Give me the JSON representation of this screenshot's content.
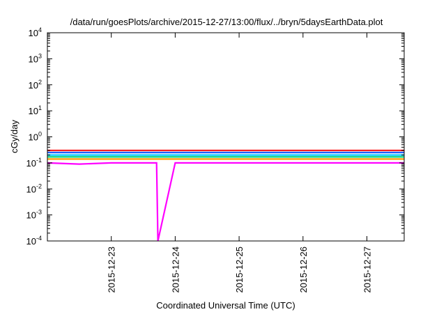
{
  "chart_data": {
    "type": "line",
    "title": "/data/run/goesPlots/archive/2015-12-27/13:00/flux/../bryn/5daysEarthData.plot",
    "xlabel": "Coordinated Universal Time (UTC)",
    "ylabel": "cGy/day",
    "yscale": "log",
    "ylim": [
      0.0001,
      10000
    ],
    "xlim": [
      "2015-12-22T00:00",
      "2015-12-27T14:00"
    ],
    "grid": false,
    "legend": "none",
    "y_ticks": [
      {
        "value": 0.0001,
        "base": "10",
        "exp": "-4"
      },
      {
        "value": 0.001,
        "base": "10",
        "exp": "-3"
      },
      {
        "value": 0.01,
        "base": "10",
        "exp": "-2"
      },
      {
        "value": 0.1,
        "base": "10",
        "exp": "-1"
      },
      {
        "value": 1,
        "base": "10",
        "exp": "0"
      },
      {
        "value": 10,
        "base": "10",
        "exp": "1"
      },
      {
        "value": 100,
        "base": "10",
        "exp": "2"
      },
      {
        "value": 1000,
        "base": "10",
        "exp": "3"
      },
      {
        "value": 10000,
        "base": "10",
        "exp": "4"
      }
    ],
    "x_ticks": [
      "2015-12-23",
      "2015-12-24",
      "2015-12-25",
      "2015-12-26",
      "2015-12-27"
    ],
    "series": [
      {
        "color": "#ff2020",
        "x": [
          "2015-12-22",
          "2015-12-23",
          "2015-12-24",
          "2015-12-25",
          "2015-12-26",
          "2015-12-27",
          "2015-12-27T14:00"
        ],
        "values": [
          0.3,
          0.3,
          0.3,
          0.3,
          0.3,
          0.3,
          0.3
        ]
      },
      {
        "color": "#1f5fff",
        "x": [
          "2015-12-22",
          "2015-12-23",
          "2015-12-24",
          "2015-12-25",
          "2015-12-26",
          "2015-12-27",
          "2015-12-27T14:00"
        ],
        "values": [
          0.25,
          0.25,
          0.25,
          0.25,
          0.25,
          0.25,
          0.25
        ]
      },
      {
        "color": "#00c8ff",
        "x": [
          "2015-12-22",
          "2015-12-23",
          "2015-12-24",
          "2015-12-25",
          "2015-12-26",
          "2015-12-27",
          "2015-12-27T14:00"
        ],
        "values": [
          0.2,
          0.2,
          0.2,
          0.2,
          0.2,
          0.2,
          0.2
        ]
      },
      {
        "color": "#00d070",
        "x": [
          "2015-12-22",
          "2015-12-23",
          "2015-12-24",
          "2015-12-25",
          "2015-12-26",
          "2015-12-27",
          "2015-12-27T14:00"
        ],
        "values": [
          0.17,
          0.17,
          0.17,
          0.17,
          0.17,
          0.17,
          0.17
        ]
      },
      {
        "color": "#ff9a00",
        "x": [
          "2015-12-22",
          "2015-12-23",
          "2015-12-24",
          "2015-12-25",
          "2015-12-26",
          "2015-12-27",
          "2015-12-27T14:00"
        ],
        "values": [
          0.14,
          0.14,
          0.14,
          0.14,
          0.14,
          0.14,
          0.14
        ]
      },
      {
        "color": "#ff00ff",
        "x": [
          "2015-12-22",
          "2015-12-22T12:00",
          "2015-12-23",
          "2015-12-23T17:00",
          "2015-12-23T17:30",
          "2015-12-24",
          "2015-12-25",
          "2015-12-26",
          "2015-12-27",
          "2015-12-27T14:00"
        ],
        "values": [
          0.1,
          0.09,
          0.1,
          0.1,
          0.0001,
          0.1,
          0.1,
          0.1,
          0.1,
          0.1
        ]
      }
    ]
  }
}
